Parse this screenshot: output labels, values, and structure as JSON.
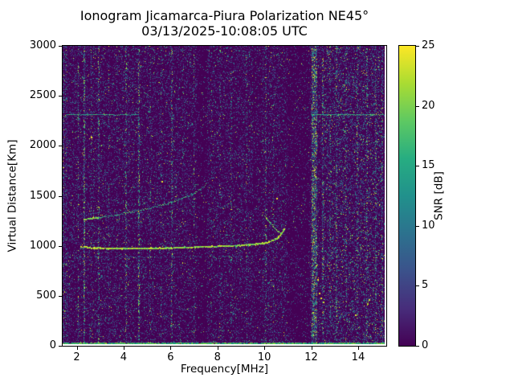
{
  "chart_data": {
    "type": "heatmap",
    "title": "Ionogram Jicamarca-Piura Polarization NE45°",
    "subtitle": "03/13/2025-10:08:05 UTC",
    "xlabel": "Frequency[MHz]",
    "ylabel": "Virtual Distance[Km]",
    "x_range": [
      1.4,
      15.2
    ],
    "y_range": [
      0,
      3000
    ],
    "x_ticks": [
      2,
      4,
      6,
      8,
      10,
      12,
      14
    ],
    "y_ticks": [
      0,
      500,
      1000,
      1500,
      2000,
      2500,
      3000
    ],
    "grid": false,
    "background_color": "#440154",
    "colorbar": {
      "label": "SNR [dB]",
      "range": [
        0,
        25
      ],
      "ticks": [
        0,
        5,
        10,
        15,
        20,
        25
      ],
      "colormap": "viridis",
      "stops": [
        "#440154",
        "#472d7b",
        "#3b528b",
        "#2c728e",
        "#21918c",
        "#27ad81",
        "#5ec962",
        "#aadc32",
        "#fde725"
      ]
    },
    "seed": 1337,
    "noise": {
      "density": 0.27,
      "snr_mean": 4.5,
      "bright_speck_prob": 0.015
    },
    "quiet_bands": [
      {
        "f_min": 7.15,
        "f_max": 7.6,
        "factor": 0.45
      },
      {
        "f_min": 11.05,
        "f_max": 12.0,
        "factor": 0.5
      },
      {
        "f_min": 9.55,
        "f_max": 9.95,
        "factor": 0.75
      }
    ],
    "rfi_bands": [
      {
        "f": 1.5,
        "width": 0.2,
        "density": 0.15,
        "snr": 6
      },
      {
        "f": 2.07,
        "width": 0.06,
        "density": 0.3,
        "snr": 8
      },
      {
        "f": 2.32,
        "width": 0.07,
        "density": 0.45,
        "snr": 9
      },
      {
        "f": 2.62,
        "width": 0.05,
        "density": 0.2,
        "snr": 7
      },
      {
        "f": 2.95,
        "width": 0.07,
        "density": 0.28,
        "snr": 8
      },
      {
        "f": 3.38,
        "width": 0.06,
        "density": 0.22,
        "snr": 7
      },
      {
        "f": 3.72,
        "width": 0.05,
        "density": 0.15,
        "snr": 6
      },
      {
        "f": 4.12,
        "width": 0.06,
        "density": 0.28,
        "snr": 8
      },
      {
        "f": 4.68,
        "width": 0.08,
        "density": 0.38,
        "snr": 9
      },
      {
        "f": 5.15,
        "width": 0.05,
        "density": 0.14,
        "snr": 6
      },
      {
        "f": 5.62,
        "width": 0.06,
        "density": 0.24,
        "snr": 7
      },
      {
        "f": 6.08,
        "width": 0.06,
        "density": 0.28,
        "snr": 8
      },
      {
        "f": 6.55,
        "width": 0.05,
        "density": 0.14,
        "snr": 6
      },
      {
        "f": 7.02,
        "width": 0.05,
        "density": 0.18,
        "snr": 7
      },
      {
        "f": 7.78,
        "width": 0.05,
        "density": 0.12,
        "snr": 6
      },
      {
        "f": 8.15,
        "width": 0.05,
        "density": 0.14,
        "snr": 6
      },
      {
        "f": 8.62,
        "width": 0.05,
        "density": 0.12,
        "snr": 6
      },
      {
        "f": 9.28,
        "width": 0.05,
        "density": 0.12,
        "snr": 6
      },
      {
        "f": 10.12,
        "width": 0.07,
        "density": 0.22,
        "snr": 7
      },
      {
        "f": 10.45,
        "width": 0.05,
        "density": 0.12,
        "snr": 6
      },
      {
        "f": 12.2,
        "width": 0.25,
        "density": 0.5,
        "snr": 10
      },
      {
        "f": 12.55,
        "width": 0.08,
        "density": 0.28,
        "snr": 8
      },
      {
        "f": 12.85,
        "width": 0.06,
        "density": 0.2,
        "snr": 7
      },
      {
        "f": 13.15,
        "width": 0.07,
        "density": 0.26,
        "snr": 8
      },
      {
        "f": 13.55,
        "width": 0.06,
        "density": 0.18,
        "snr": 7
      },
      {
        "f": 14.02,
        "width": 0.06,
        "density": 0.24,
        "snr": 8
      },
      {
        "f": 14.45,
        "width": 0.08,
        "density": 0.28,
        "snr": 8
      },
      {
        "f": 14.82,
        "width": 0.06,
        "density": 0.22,
        "snr": 8
      },
      {
        "f": 15.1,
        "width": 0.08,
        "density": 0.28,
        "snr": 8
      },
      {
        "f": 13.8,
        "width": 2.6,
        "density": 0.07,
        "snr": 6
      }
    ],
    "traces": [
      {
        "name": "ground-return-baseline",
        "points": [
          [
            1.4,
            10
          ],
          [
            15.2,
            10
          ]
        ],
        "thickness_km": 22,
        "snr": 17,
        "snr_jitter": 5,
        "density": 2.4,
        "dot": 2
      },
      {
        "name": "f-region-echo-main",
        "points": [
          [
            2.15,
            982
          ],
          [
            2.6,
            972
          ],
          [
            3.2,
            967
          ],
          [
            4.0,
            965
          ],
          [
            5.0,
            967
          ],
          [
            6.0,
            971
          ],
          [
            7.0,
            977
          ],
          [
            8.0,
            987
          ],
          [
            8.8,
            994
          ],
          [
            9.4,
            1002
          ],
          [
            9.8,
            1012
          ],
          [
            10.1,
            1024
          ],
          [
            10.35,
            1042
          ],
          [
            10.55,
            1068
          ],
          [
            10.7,
            1098
          ],
          [
            10.8,
            1135
          ],
          [
            10.88,
            1180
          ]
        ],
        "thickness_km": 18,
        "snr": 21,
        "snr_jitter": 3.5,
        "density": 2.6,
        "dot": 2
      },
      {
        "name": "f-region-cusp-branch",
        "points": [
          [
            10.05,
            1290
          ],
          [
            10.25,
            1232
          ],
          [
            10.45,
            1176
          ],
          [
            10.62,
            1136
          ],
          [
            10.74,
            1115
          ],
          [
            10.84,
            1142
          ]
        ],
        "thickness_km": 16,
        "snr": 19,
        "snr_jitter": 4,
        "density": 1.8,
        "dot": 1
      },
      {
        "name": "upper-trace-bright-head",
        "points": [
          [
            2.3,
            1260
          ],
          [
            2.95,
            1276
          ]
        ],
        "thickness_km": 14,
        "snr": 20,
        "snr_jitter": 3,
        "density": 2.2,
        "dot": 2
      },
      {
        "name": "upper-diffuse-trace",
        "points": [
          [
            2.95,
            1276
          ],
          [
            3.6,
            1300
          ],
          [
            4.2,
            1327
          ],
          [
            4.8,
            1355
          ],
          [
            5.4,
            1388
          ],
          [
            6.0,
            1428
          ],
          [
            6.6,
            1475
          ],
          [
            7.0,
            1518
          ],
          [
            7.35,
            1572
          ],
          [
            7.6,
            1625
          ]
        ],
        "thickness_km": 26,
        "snr": 15,
        "snr_jitter": 5,
        "density": 1.0,
        "dot": 1
      },
      {
        "name": "interference-line-left",
        "points": [
          [
            1.55,
            2312
          ],
          [
            4.65,
            2310
          ]
        ],
        "thickness_km": 12,
        "snr": 14,
        "snr_jitter": 6,
        "density": 1.4,
        "dot": 1
      },
      {
        "name": "interference-line-right",
        "points": [
          [
            12.05,
            2312
          ],
          [
            15.2,
            2310
          ]
        ],
        "thickness_km": 12,
        "snr": 15,
        "snr_jitter": 6,
        "density": 1.4,
        "dot": 1
      },
      {
        "name": "faint-horizontal-880km",
        "points": [
          [
            1.5,
            878
          ],
          [
            9.5,
            886
          ]
        ],
        "thickness_km": 16,
        "snr": 9,
        "snr_jitter": 4,
        "density": 0.4,
        "dot": 1
      }
    ],
    "hot_spots": [
      [
        12.45,
        468
      ],
      [
        12.56,
        430
      ],
      [
        12.38,
        515
      ],
      [
        14.5,
        452
      ],
      [
        14.43,
        415
      ],
      [
        5.65,
        1642
      ],
      [
        13.92,
        296
      ],
      [
        10.55,
        1468
      ],
      [
        2.6,
        2088
      ],
      [
        12.3,
        655
      ]
    ]
  }
}
